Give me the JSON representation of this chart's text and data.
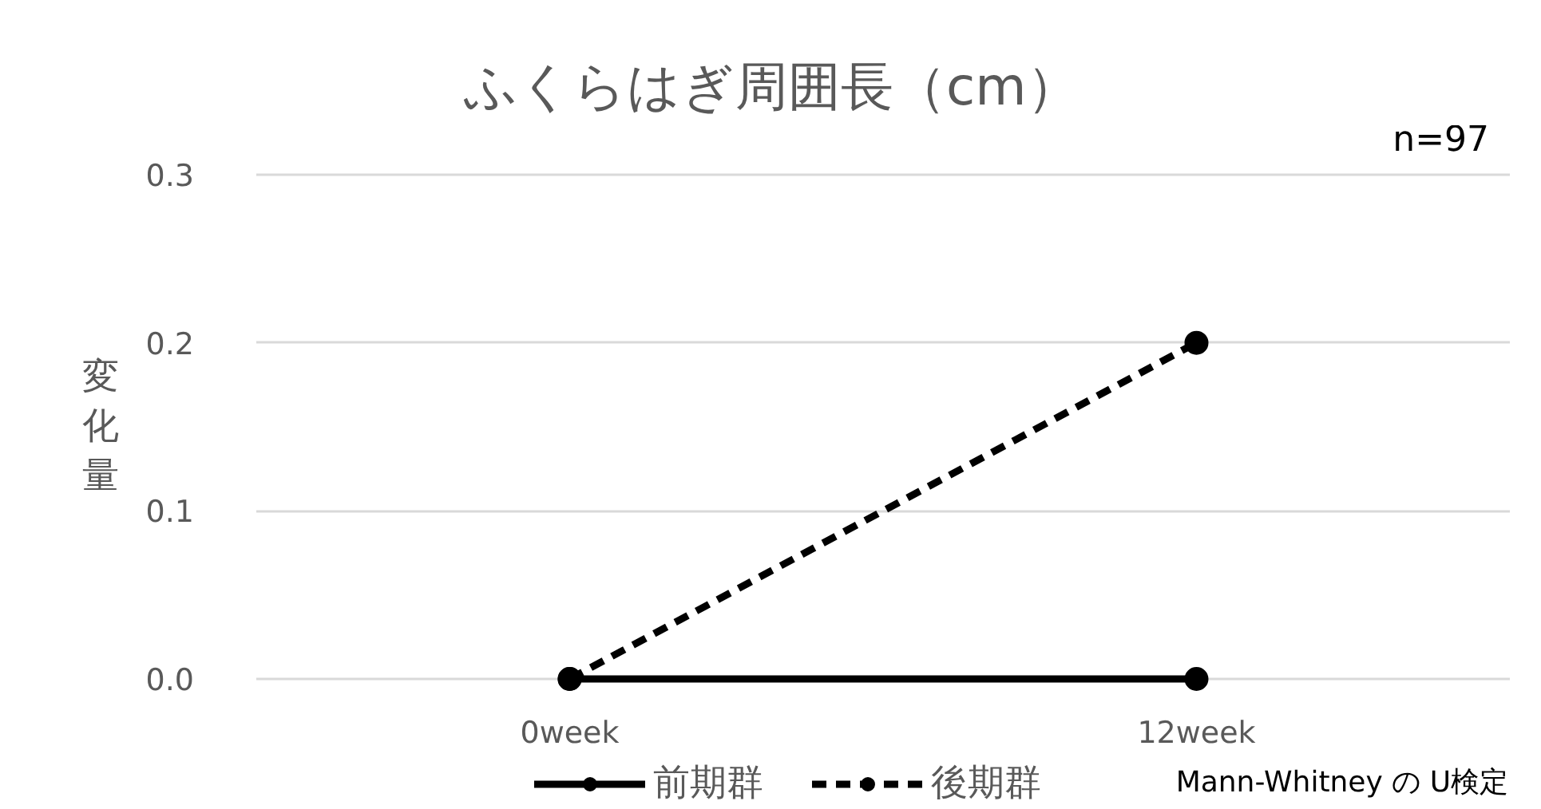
{
  "chart_data": {
    "type": "line",
    "title": "ふくらはぎ周囲長（cm）",
    "ylabel": "変化量",
    "categories": [
      "0week",
      "12week"
    ],
    "series": [
      {
        "name": "前期群",
        "color": "#000000",
        "line_style": "solid",
        "values": [
          0,
          0
        ]
      },
      {
        "name": "後期群",
        "color": "#000000",
        "line_style": "dashed",
        "values": [
          0,
          0.2
        ]
      }
    ],
    "ylim": [
      0,
      0.3
    ],
    "yticks": [
      {
        "value": 0,
        "label": "0.0"
      },
      0.1,
      0.2,
      0.3
    ],
    "grid": "y",
    "legend": "bottom",
    "marker": "circle",
    "annotations": [
      "n=97",
      "Mann-Whitney の U検定"
    ]
  }
}
